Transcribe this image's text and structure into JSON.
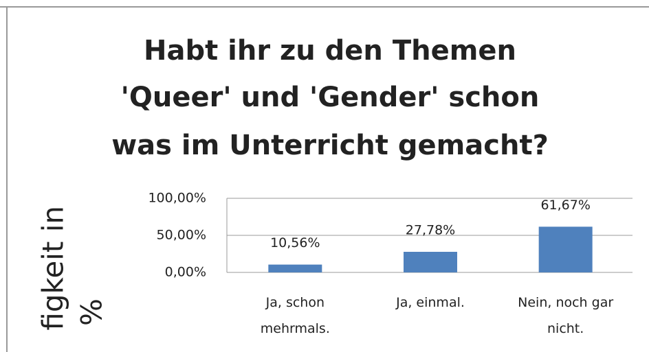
{
  "chart_data": {
    "type": "bar",
    "title": [
      "Habt ihr zu den Themen",
      "'Queer' und 'Gender' schon",
      "was im Unterricht gemacht?"
    ],
    "y_label": [
      "figkeit in",
      "%"
    ],
    "categories": [
      "Ja, schon mehrmals.",
      "Ja, einmal.",
      "Nein, noch gar nicht."
    ],
    "values": [
      10.56,
      27.78,
      61.67
    ],
    "value_labels": [
      "10,56%",
      "27,78%",
      "61,67%"
    ],
    "color": "#4f81bd",
    "ylim": [
      0,
      100
    ],
    "yticks": [
      {
        "value": 0,
        "label": "0,00%"
      },
      {
        "value": 50,
        "label": "50,00%"
      },
      {
        "value": 100,
        "label": "100,00%"
      }
    ],
    "grid": true
  }
}
